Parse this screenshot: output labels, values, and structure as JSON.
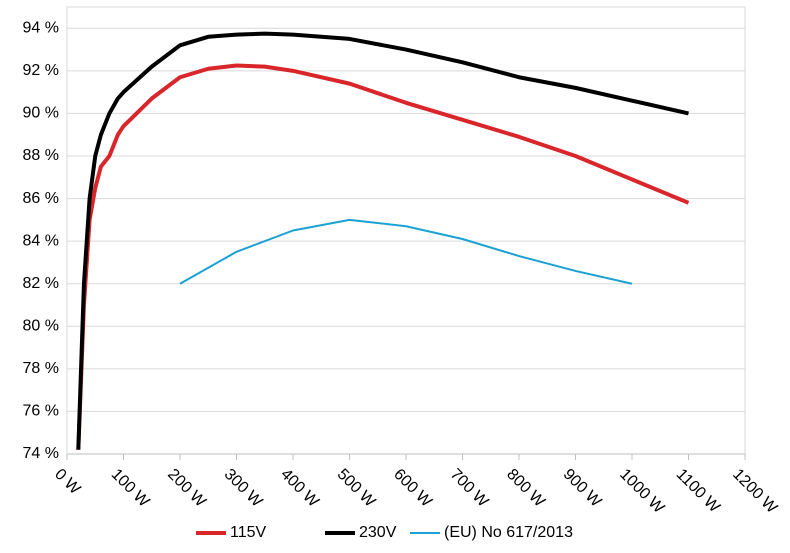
{
  "chart_data": {
    "type": "line",
    "xlim": [
      0,
      1200
    ],
    "xticks": [
      {
        "value": 0,
        "label": "0 W"
      },
      {
        "value": 100,
        "label": "100 W"
      },
      {
        "value": 200,
        "label": "200 W"
      },
      {
        "value": 300,
        "label": "300 W"
      },
      {
        "value": 400,
        "label": "400 W"
      },
      {
        "value": 500,
        "label": "500 W"
      },
      {
        "value": 600,
        "label": "600 W"
      },
      {
        "value": 700,
        "label": "700 W"
      },
      {
        "value": 800,
        "label": "800 W"
      },
      {
        "value": 900,
        "label": "900 W"
      },
      {
        "value": 1000,
        "label": "1000 W"
      },
      {
        "value": 1100,
        "label": "1100 W"
      },
      {
        "value": 1200,
        "label": "1200 W"
      }
    ],
    "ylim": [
      74,
      95
    ],
    "yticks": [
      {
        "value": 74,
        "label": "74 %"
      },
      {
        "value": 76,
        "label": "76 %"
      },
      {
        "value": 78,
        "label": "78 %"
      },
      {
        "value": 80,
        "label": "80 %"
      },
      {
        "value": 82,
        "label": "82 %"
      },
      {
        "value": 84,
        "label": "84 %"
      },
      {
        "value": 86,
        "label": "86 %"
      },
      {
        "value": 88,
        "label": "88 %"
      },
      {
        "value": 90,
        "label": "90 %"
      },
      {
        "value": 92,
        "label": "92 %"
      },
      {
        "value": 94,
        "label": "94 %"
      }
    ],
    "grid": true,
    "legend": "bottom",
    "series": [
      {
        "name": "115V",
        "color": "#d9262b",
        "width": 4,
        "x": [
          20,
          30,
          40,
          50,
          60,
          75,
          90,
          100,
          150,
          200,
          250,
          300,
          350,
          400,
          500,
          600,
          700,
          800,
          900,
          1000,
          1100
        ],
        "values": [
          74.2,
          81,
          85,
          86.5,
          87.5,
          88,
          89,
          89.4,
          90.7,
          91.7,
          92.1,
          92.25,
          92.2,
          92.0,
          91.4,
          90.5,
          89.7,
          88.9,
          88.0,
          86.9,
          85.8
        ]
      },
      {
        "name": "230V",
        "color": "#000000",
        "width": 4,
        "x": [
          20,
          30,
          40,
          50,
          60,
          75,
          90,
          100,
          150,
          200,
          250,
          300,
          350,
          400,
          500,
          600,
          700,
          800,
          900,
          1000,
          1100
        ],
        "values": [
          74.2,
          82,
          86,
          88,
          89,
          90,
          90.7,
          91.0,
          92.2,
          93.2,
          93.6,
          93.7,
          93.75,
          93.7,
          93.5,
          93.0,
          92.4,
          91.7,
          91.2,
          90.6,
          90.0
        ]
      },
      {
        "name": "(EU) No 617/2013",
        "color": "#1ba1d4",
        "width": 2,
        "x": [
          200,
          300,
          400,
          500,
          600,
          700,
          800,
          900,
          1000
        ],
        "values": [
          82,
          83.5,
          84.5,
          85,
          84.7,
          84.1,
          83.3,
          82.6,
          82
        ]
      }
    ]
  }
}
